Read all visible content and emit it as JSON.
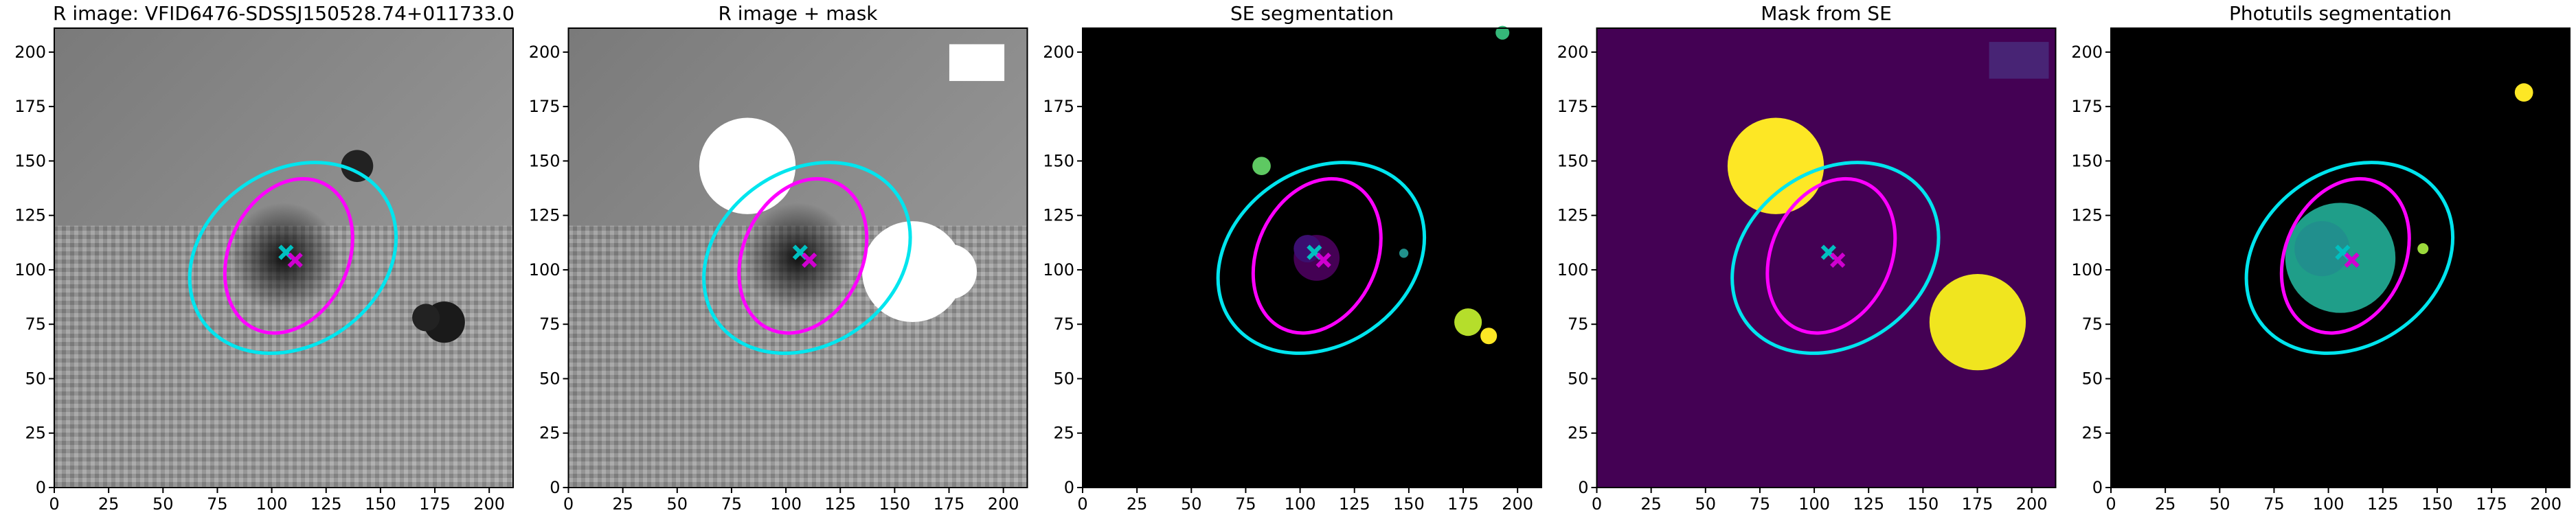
{
  "chart_data": [
    {
      "type": "image",
      "title": "R image: VFID6476-SDSSJ150528.74+011733.0",
      "xlim": [
        0,
        211
      ],
      "ylim": [
        0,
        211
      ],
      "xticks": [
        0,
        25,
        50,
        75,
        100,
        125,
        150,
        175,
        200
      ],
      "yticks": [
        0,
        25,
        50,
        75,
        100,
        125,
        150,
        175,
        200
      ]
    },
    {
      "type": "image",
      "title": "R image + mask",
      "xlim": [
        0,
        211
      ],
      "ylim": [
        0,
        211
      ],
      "xticks": [
        0,
        25,
        50,
        75,
        100,
        125,
        150,
        175,
        200
      ],
      "yticks": [
        0,
        25,
        50,
        75,
        100,
        125,
        150,
        175,
        200
      ]
    },
    {
      "type": "image",
      "title": "SE segmentation",
      "xlim": [
        0,
        211
      ],
      "ylim": [
        0,
        211
      ],
      "xticks": [
        0,
        25,
        50,
        75,
        100,
        125,
        150,
        175,
        200
      ],
      "yticks": [
        0,
        25,
        50,
        75,
        100,
        125,
        150,
        175,
        200
      ]
    },
    {
      "type": "image",
      "title": "Mask from SE",
      "xlim": [
        0,
        211
      ],
      "ylim": [
        0,
        211
      ],
      "xticks": [
        0,
        25,
        50,
        75,
        100,
        125,
        150,
        175,
        200
      ],
      "yticks": [
        0,
        25,
        50,
        75,
        100,
        125,
        150,
        175,
        200
      ]
    },
    {
      "type": "image",
      "title": "Photutils segmentation",
      "xlim": [
        0,
        211
      ],
      "ylim": [
        0,
        211
      ],
      "xticks": [
        0,
        25,
        50,
        75,
        100,
        125,
        150,
        175,
        200
      ],
      "yticks": [
        0,
        25,
        50,
        75,
        100,
        125,
        150,
        175,
        200
      ]
    }
  ]
}
